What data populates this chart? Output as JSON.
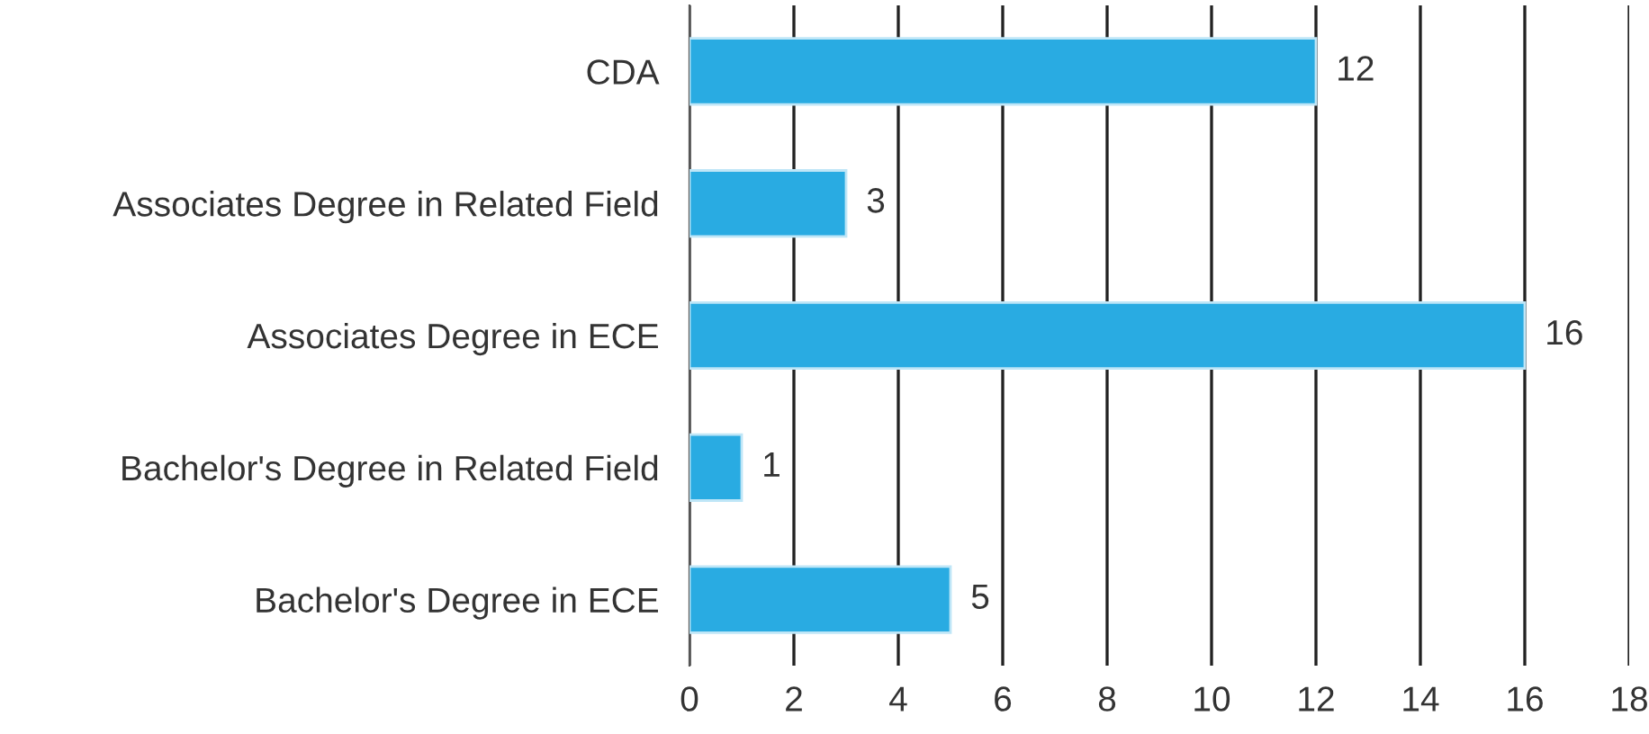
{
  "chart_data": {
    "type": "bar",
    "orientation": "horizontal",
    "categories": [
      "CDA",
      "Associates Degree in Related Field",
      "Associates Degree in ECE",
      "Bachelor's Degree in Related Field",
      "Bachelor's Degree in ECE"
    ],
    "values": [
      12,
      3,
      16,
      1,
      5
    ],
    "color": "#29abe2",
    "xlim": [
      0,
      18
    ],
    "xticks": [
      0,
      2,
      4,
      6,
      8,
      10,
      12,
      14,
      16,
      18
    ],
    "grid": "x",
    "data_labels": true,
    "legend": false
  }
}
